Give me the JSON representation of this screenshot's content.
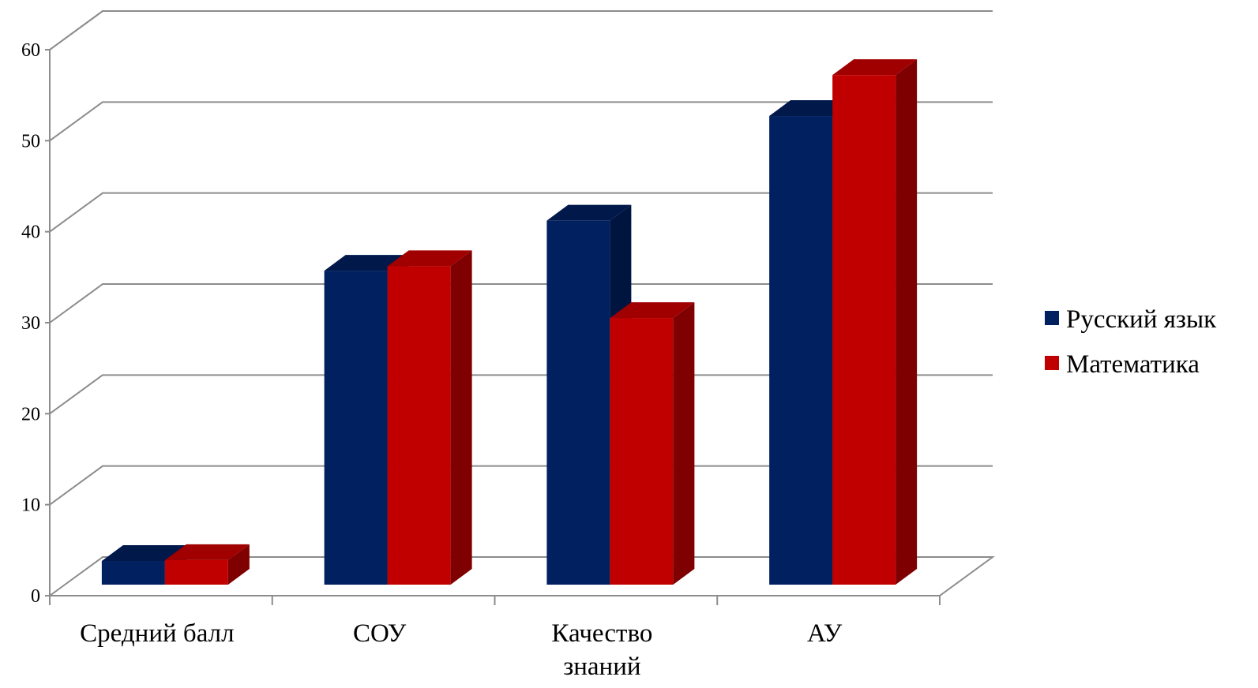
{
  "chart_data": {
    "type": "bar",
    "categories": [
      [
        "Средний балл"
      ],
      [
        "СОУ"
      ],
      [
        "Качество",
        "знаний"
      ],
      [
        "АУ"
      ]
    ],
    "series": [
      {
        "name": "Русский язык",
        "values": [
          2.6,
          34.5,
          40,
          51.5
        ],
        "color": "#002060",
        "side_color": "#001440",
        "top_color": "#00184a"
      },
      {
        "name": "Математика",
        "values": [
          2.7,
          35,
          29.3,
          56
        ],
        "color": "#c00000",
        "side_color": "#7f0000",
        "top_color": "#a00000"
      }
    ],
    "yticks": [
      "0",
      "10",
      "20",
      "30",
      "40",
      "50",
      "60"
    ],
    "ylim": [
      0,
      60
    ],
    "grid": true,
    "legend_position": "right",
    "title": "",
    "xlabel": "",
    "ylabel": ""
  }
}
